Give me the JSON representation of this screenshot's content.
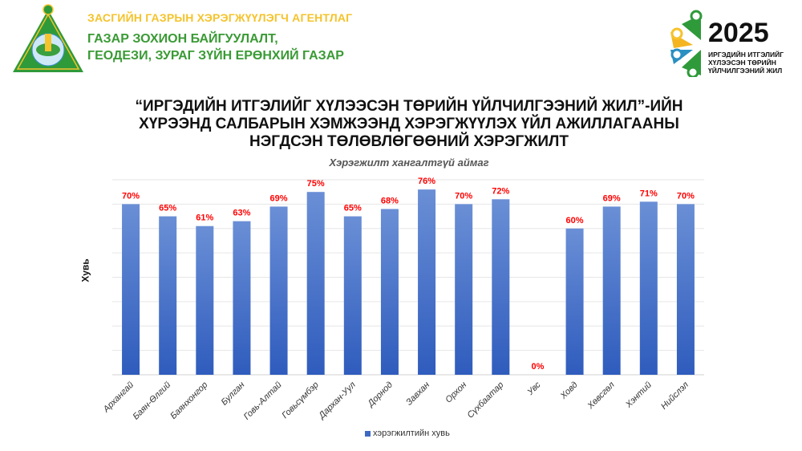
{
  "header": {
    "org_line1": "ЗАСГИЙН ГАЗРЫН ХЭРЭГЖҮҮЛЭГЧ АГЕНТЛАГ",
    "org_line2": "ГАЗАР ЗОХИОН БАЙГУУЛАЛТ,",
    "org_line3": "ГЕОДЕЗИ, ЗУРАГ ЗҮЙН ЕРӨНХИЙ ГАЗАР",
    "logo_year": "2025",
    "logo_sub1": "ИРГЭДИЙН ИТГЭЛИЙГ",
    "logo_sub2": "ХҮЛЭЭСЭН ТӨРИЙН",
    "logo_sub3": "ҮЙЛЧИЛГЭЭНИЙ ЖИЛ"
  },
  "title_lines": [
    "“ИРГЭДИЙН ИТГЭЛИЙГ ХҮЛЭЭСЭН ТӨРИЙН ҮЙЛЧИЛГЭЭНИЙ ЖИЛ”-ИЙН",
    "ХҮРЭЭНД САЛБАРЫН ХЭМЖЭЭНД ХЭРЭГЖҮҮЛЭХ ҮЙЛ АЖИЛЛАГААНЫ",
    "НЭГДСЭН ТӨЛӨВЛӨГӨӨНИЙ ХЭРЭГЖИЛТ"
  ],
  "chart_data": {
    "type": "bar",
    "title": "Хэрэгжилт хангалтгүй аймаг",
    "xlabel": "",
    "ylabel": "Хувь",
    "ylim": [
      0,
      80
    ],
    "ytick_step": 10,
    "grid": true,
    "legend_position": "bottom",
    "categories": [
      "Архангай",
      "Баян-Өлгий",
      "Баянхонгор",
      "Булган",
      "Говь-Алтай",
      "Говьсүмбэр",
      "Дархан-Уул",
      "Дорнод",
      "Завхан",
      "Орхон",
      "Сүхбаатар",
      "Увс",
      "Ховд",
      "Хөвсгөл",
      "Хэнтий",
      "Нийслэл"
    ],
    "series": [
      {
        "name": "хэрэгжилтийн хувь",
        "values": [
          70,
          65,
          61,
          63,
          69,
          75,
          65,
          68,
          76,
          70,
          72,
          0,
          60,
          69,
          71,
          70
        ],
        "color": "#3f68c3"
      }
    ],
    "data_labels": [
      "70%",
      "65%",
      "61%",
      "63%",
      "69%",
      "75%",
      "65%",
      "68%",
      "76%",
      "70%",
      "72%",
      "0%",
      "60%",
      "69%",
      "71%",
      "70%"
    ],
    "data_label_color": "#ff0000"
  }
}
